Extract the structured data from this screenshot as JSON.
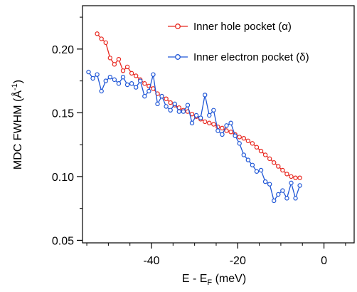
{
  "chart_data": {
    "type": "line",
    "xlabel_main": "E - E",
    "xlabel_sub": "F",
    "xlabel_unit": " (meV)",
    "ylabel_main": "MDC FWHM (Å",
    "ylabel_sup": "-1",
    "ylabel_end": ")",
    "xlim": [
      -56,
      7
    ],
    "ylim": [
      0.048,
      0.234
    ],
    "x_ticks": [
      -40,
      -20,
      0
    ],
    "x_tick_labels": [
      "-40",
      "-20",
      "0"
    ],
    "x_minor_ticks": [
      -55,
      -50,
      -45,
      -35,
      -30,
      -25,
      -15,
      -10,
      -5,
      5
    ],
    "y_ticks": [
      0.05,
      0.1,
      0.15,
      0.2
    ],
    "y_tick_labels": [
      "0.05",
      "0.10",
      "0.15",
      "0.20"
    ],
    "y_minor_ticks": [
      0.075,
      0.125,
      0.175,
      0.225
    ],
    "grid": false,
    "legend_position": "top-right",
    "series": [
      {
        "name": "Inner hole pocket (α)",
        "color": "#e8271f",
        "x": [
          -52.6,
          -51.6,
          -50.6,
          -49.6,
          -48.6,
          -47.6,
          -46.6,
          -45.6,
          -44.6,
          -43.6,
          -42.6,
          -41.6,
          -40.6,
          -39.6,
          -38.6,
          -37.6,
          -36.6,
          -35.6,
          -34.6,
          -33.6,
          -32.6,
          -31.6,
          -30.6,
          -29.6,
          -28.6,
          -27.6,
          -26.6,
          -25.6,
          -24.6,
          -23.6,
          -22.6,
          -21.6,
          -20.6,
          -19.6,
          -18.6,
          -17.6,
          -16.6,
          -15.6,
          -14.6,
          -13.6,
          -12.6,
          -11.6,
          -10.6,
          -9.6,
          -8.6,
          -7.6,
          -6.6,
          -5.6
        ],
        "values": [
          0.212,
          0.208,
          0.205,
          0.193,
          0.188,
          0.192,
          0.183,
          0.186,
          0.181,
          0.179,
          0.176,
          0.173,
          0.171,
          0.169,
          0.165,
          0.163,
          0.161,
          0.158,
          0.156,
          0.154,
          0.152,
          0.151,
          0.149,
          0.147,
          0.145,
          0.143,
          0.142,
          0.141,
          0.139,
          0.138,
          0.136,
          0.135,
          0.133,
          0.131,
          0.13,
          0.128,
          0.126,
          0.123,
          0.12,
          0.117,
          0.114,
          0.111,
          0.108,
          0.105,
          0.102,
          0.1,
          0.099,
          0.099
        ]
      },
      {
        "name": "Inner electron pocket (δ)",
        "color": "#1f56d6",
        "x": [
          -54.6,
          -53.6,
          -52.6,
          -51.6,
          -50.6,
          -49.6,
          -48.6,
          -47.6,
          -46.6,
          -45.6,
          -44.6,
          -43.6,
          -42.6,
          -41.6,
          -40.6,
          -39.6,
          -38.6,
          -37.6,
          -36.6,
          -35.6,
          -34.6,
          -33.6,
          -32.6,
          -31.6,
          -30.6,
          -29.6,
          -28.6,
          -27.6,
          -26.6,
          -25.6,
          -24.6,
          -23.6,
          -22.6,
          -21.6,
          -20.6,
          -19.6,
          -18.6,
          -17.6,
          -16.6,
          -15.6,
          -14.6,
          -13.6,
          -12.6,
          -11.6,
          -10.6,
          -9.6,
          -8.6,
          -7.6,
          -6.6,
          -5.6
        ],
        "values": [
          0.182,
          0.177,
          0.18,
          0.167,
          0.175,
          0.178,
          0.176,
          0.173,
          0.178,
          0.172,
          0.173,
          0.17,
          0.175,
          0.163,
          0.167,
          0.18,
          0.157,
          0.163,
          0.155,
          0.152,
          0.157,
          0.151,
          0.151,
          0.156,
          0.142,
          0.148,
          0.146,
          0.164,
          0.148,
          0.152,
          0.136,
          0.133,
          0.14,
          0.142,
          0.132,
          0.126,
          0.117,
          0.113,
          0.109,
          0.104,
          0.105,
          0.096,
          0.094,
          0.081,
          0.086,
          0.089,
          0.083,
          0.095,
          0.083,
          0.093
        ]
      }
    ]
  }
}
